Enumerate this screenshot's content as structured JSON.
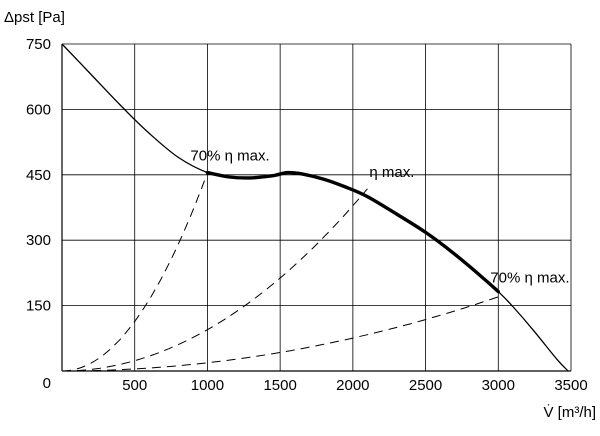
{
  "chart_data": {
    "type": "line",
    "xlabel": "V̇ [m³/h]",
    "ylabel": "Δpst [Pa]",
    "xlim": [
      0,
      3500
    ],
    "ylim": [
      0,
      750
    ],
    "x_ticks": [
      0,
      500,
      1000,
      1500,
      2000,
      2500,
      3000,
      3500
    ],
    "y_ticks": [
      150,
      300,
      450,
      600,
      750
    ],
    "grid": true,
    "series": [
      {
        "role": "fan curve",
        "line_style": "solid",
        "points": [
          [
            0,
            750
          ],
          [
            200,
            680
          ],
          [
            400,
            610
          ],
          [
            600,
            545
          ],
          [
            800,
            490
          ],
          [
            1000,
            455
          ],
          [
            1150,
            445
          ],
          [
            1300,
            443
          ],
          [
            1450,
            448
          ],
          [
            1550,
            455
          ],
          [
            1650,
            452
          ],
          [
            1800,
            440
          ],
          [
            1950,
            422
          ],
          [
            2100,
            400
          ],
          [
            2300,
            360
          ],
          [
            2500,
            318
          ],
          [
            2700,
            268
          ],
          [
            2900,
            212
          ],
          [
            3000,
            182
          ],
          [
            3100,
            148
          ],
          [
            3250,
            90
          ],
          [
            3400,
            28
          ],
          [
            3480,
            0
          ]
        ]
      },
      {
        "role": "duty range (bold segment)",
        "line_style": "bold",
        "x_range": [
          1000,
          3000
        ]
      },
      {
        "role": "system curve",
        "line_style": "dashed",
        "points": [
          [
            0,
            0
          ],
          [
            1000,
            455
          ]
        ]
      },
      {
        "role": "system curve",
        "line_style": "dashed",
        "points": [
          [
            0,
            0
          ],
          [
            2100,
            418
          ]
        ]
      },
      {
        "role": "system curve",
        "line_style": "dashed",
        "points": [
          [
            0,
            0
          ],
          [
            3000,
            170
          ]
        ]
      }
    ],
    "annotations": [
      {
        "text": "70% η max.",
        "x": 1000,
        "y": 455
      },
      {
        "text": "η max.",
        "x": 2100,
        "y": 418
      },
      {
        "text": "70% η max.",
        "x": 3000,
        "y": 182
      }
    ]
  }
}
